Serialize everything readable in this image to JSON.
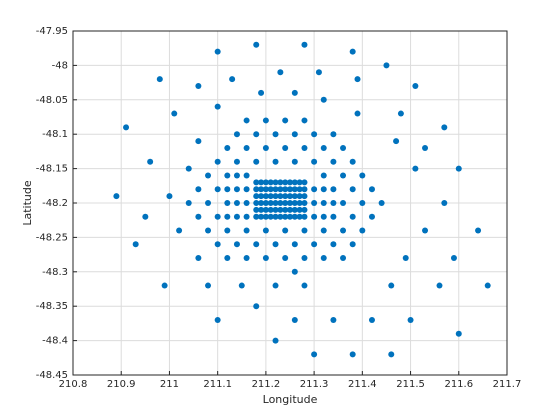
{
  "chart_data": {
    "type": "scatter",
    "xlabel": "Longitude",
    "ylabel": "Latitude",
    "color": "#0072bd",
    "grid": true,
    "xlim": [
      210.8,
      211.7
    ],
    "xticks": [
      210.8,
      210.9,
      211,
      211.1,
      211.2,
      211.3,
      211.4,
      211.5,
      211.6,
      211.7
    ],
    "ylim": [
      -48.45,
      -47.95
    ],
    "yticks": [
      -48.45,
      -48.4,
      -48.35,
      -48.3,
      -48.25,
      -48.2,
      -48.15,
      -48.1,
      -48.05,
      -48,
      -47.95
    ],
    "x": [
      211.1,
      211.18,
      211.28,
      211.38,
      211.45,
      210.98,
      211.06,
      211.13,
      211.23,
      211.31,
      211.39,
      211.51,
      211.19,
      211.26,
      211.1,
      211.32,
      211.01,
      211.39,
      211.48,
      210.91,
      211.57,
      211.06,
      211.47,
      211.53,
      210.96,
      211.04,
      211.51,
      211.6,
      210.89,
      211,
      211.57,
      210.95,
      211.02,
      211.53,
      211.64,
      210.93,
      211.06,
      211.49,
      211.59,
      210.99,
      211.08,
      211.15,
      211.22,
      211.28,
      211.46,
      211.56,
      211.66,
      211.26,
      211.18,
      211.1,
      211.26,
      211.34,
      211.42,
      211.5,
      211.6,
      211.22,
      211.3,
      211.38,
      211.46,
      211.16,
      211.2,
      211.24,
      211.28,
      211.14,
      211.18,
      211.22,
      211.26,
      211.3,
      211.34,
      211.12,
      211.16,
      211.2,
      211.24,
      211.28,
      211.32,
      211.36,
      211.1,
      211.14,
      211.18,
      211.22,
      211.26,
      211.3,
      211.34,
      211.38,
      211.08,
      211.12,
      211.14,
      211.16,
      211.32,
      211.36,
      211.4,
      211.06,
      211.1,
      211.12,
      211.14,
      211.16,
      211.3,
      211.32,
      211.34,
      211.38,
      211.42,
      211.04,
      211.08,
      211.12,
      211.14,
      211.16,
      211.3,
      211.32,
      211.34,
      211.36,
      211.4,
      211.44,
      211.06,
      211.1,
      211.12,
      211.14,
      211.16,
      211.3,
      211.32,
      211.34,
      211.38,
      211.42,
      211.08,
      211.12,
      211.16,
      211.2,
      211.24,
      211.28,
      211.32,
      211.36,
      211.4,
      211.1,
      211.14,
      211.18,
      211.22,
      211.26,
      211.3,
      211.34,
      211.38,
      211.12,
      211.16,
      211.2,
      211.24,
      211.28,
      211.32,
      211.36,
      211.18,
      211.19,
      211.2,
      211.21,
      211.22,
      211.23,
      211.24,
      211.25,
      211.26,
      211.27,
      211.28,
      211.18,
      211.19,
      211.2,
      211.21,
      211.22,
      211.23,
      211.24,
      211.25,
      211.26,
      211.27,
      211.28,
      211.18,
      211.19,
      211.2,
      211.21,
      211.22,
      211.23,
      211.24,
      211.25,
      211.26,
      211.27,
      211.28,
      211.18,
      211.19,
      211.2,
      211.21,
      211.22,
      211.23,
      211.24,
      211.25,
      211.26,
      211.27,
      211.28,
      211.18,
      211.19,
      211.2,
      211.21,
      211.22,
      211.23,
      211.24,
      211.25,
      211.26,
      211.27,
      211.28,
      211.18,
      211.19,
      211.2,
      211.21,
      211.22,
      211.23,
      211.24,
      211.25,
      211.26,
      211.27,
      211.28
    ],
    "values": [
      -47.98,
      -47.97,
      -47.97,
      -47.98,
      -48,
      -48.02,
      -48.03,
      -48.02,
      -48.01,
      -48.01,
      -48.02,
      -48.03,
      -48.04,
      -48.04,
      -48.06,
      -48.05,
      -48.07,
      -48.07,
      -48.07,
      -48.09,
      -48.09,
      -48.11,
      -48.11,
      -48.12,
      -48.14,
      -48.15,
      -48.15,
      -48.15,
      -48.19,
      -48.19,
      -48.2,
      -48.22,
      -48.24,
      -48.24,
      -48.24,
      -48.26,
      -48.28,
      -48.28,
      -48.28,
      -48.32,
      -48.32,
      -48.32,
      -48.32,
      -48.32,
      -48.32,
      -48.32,
      -48.32,
      -48.3,
      -48.35,
      -48.37,
      -48.37,
      -48.37,
      -48.37,
      -48.37,
      -48.39,
      -48.4,
      -48.42,
      -48.42,
      -48.42,
      -48.08,
      -48.08,
      -48.08,
      -48.08,
      -48.1,
      -48.1,
      -48.1,
      -48.1,
      -48.1,
      -48.1,
      -48.12,
      -48.12,
      -48.12,
      -48.12,
      -48.12,
      -48.12,
      -48.12,
      -48.14,
      -48.14,
      -48.14,
      -48.14,
      -48.14,
      -48.14,
      -48.14,
      -48.14,
      -48.16,
      -48.16,
      -48.16,
      -48.16,
      -48.16,
      -48.16,
      -48.16,
      -48.18,
      -48.18,
      -48.18,
      -48.18,
      -48.18,
      -48.18,
      -48.18,
      -48.18,
      -48.18,
      -48.18,
      -48.2,
      -48.2,
      -48.2,
      -48.2,
      -48.2,
      -48.2,
      -48.2,
      -48.2,
      -48.2,
      -48.2,
      -48.2,
      -48.22,
      -48.22,
      -48.22,
      -48.22,
      -48.22,
      -48.22,
      -48.22,
      -48.22,
      -48.22,
      -48.22,
      -48.24,
      -48.24,
      -48.24,
      -48.24,
      -48.24,
      -48.24,
      -48.24,
      -48.24,
      -48.24,
      -48.26,
      -48.26,
      -48.26,
      -48.26,
      -48.26,
      -48.26,
      -48.26,
      -48.26,
      -48.28,
      -48.28,
      -48.28,
      -48.28,
      -48.28,
      -48.28,
      -48.28,
      -48.17,
      -48.17,
      -48.17,
      -48.17,
      -48.17,
      -48.17,
      -48.17,
      -48.17,
      -48.17,
      -48.17,
      -48.17,
      -48.18,
      -48.18,
      -48.18,
      -48.18,
      -48.18,
      -48.18,
      -48.18,
      -48.18,
      -48.18,
      -48.18,
      -48.18,
      -48.19,
      -48.19,
      -48.19,
      -48.19,
      -48.19,
      -48.19,
      -48.19,
      -48.19,
      -48.19,
      -48.19,
      -48.19,
      -48.2,
      -48.2,
      -48.2,
      -48.2,
      -48.2,
      -48.2,
      -48.2,
      -48.2,
      -48.2,
      -48.2,
      -48.2,
      -48.21,
      -48.21,
      -48.21,
      -48.21,
      -48.21,
      -48.21,
      -48.21,
      -48.21,
      -48.21,
      -48.21,
      -48.21,
      -48.22,
      -48.22,
      -48.22,
      -48.22,
      -48.22,
      -48.22,
      -48.22,
      -48.22,
      -48.22,
      -48.22,
      -48.22
    ]
  }
}
